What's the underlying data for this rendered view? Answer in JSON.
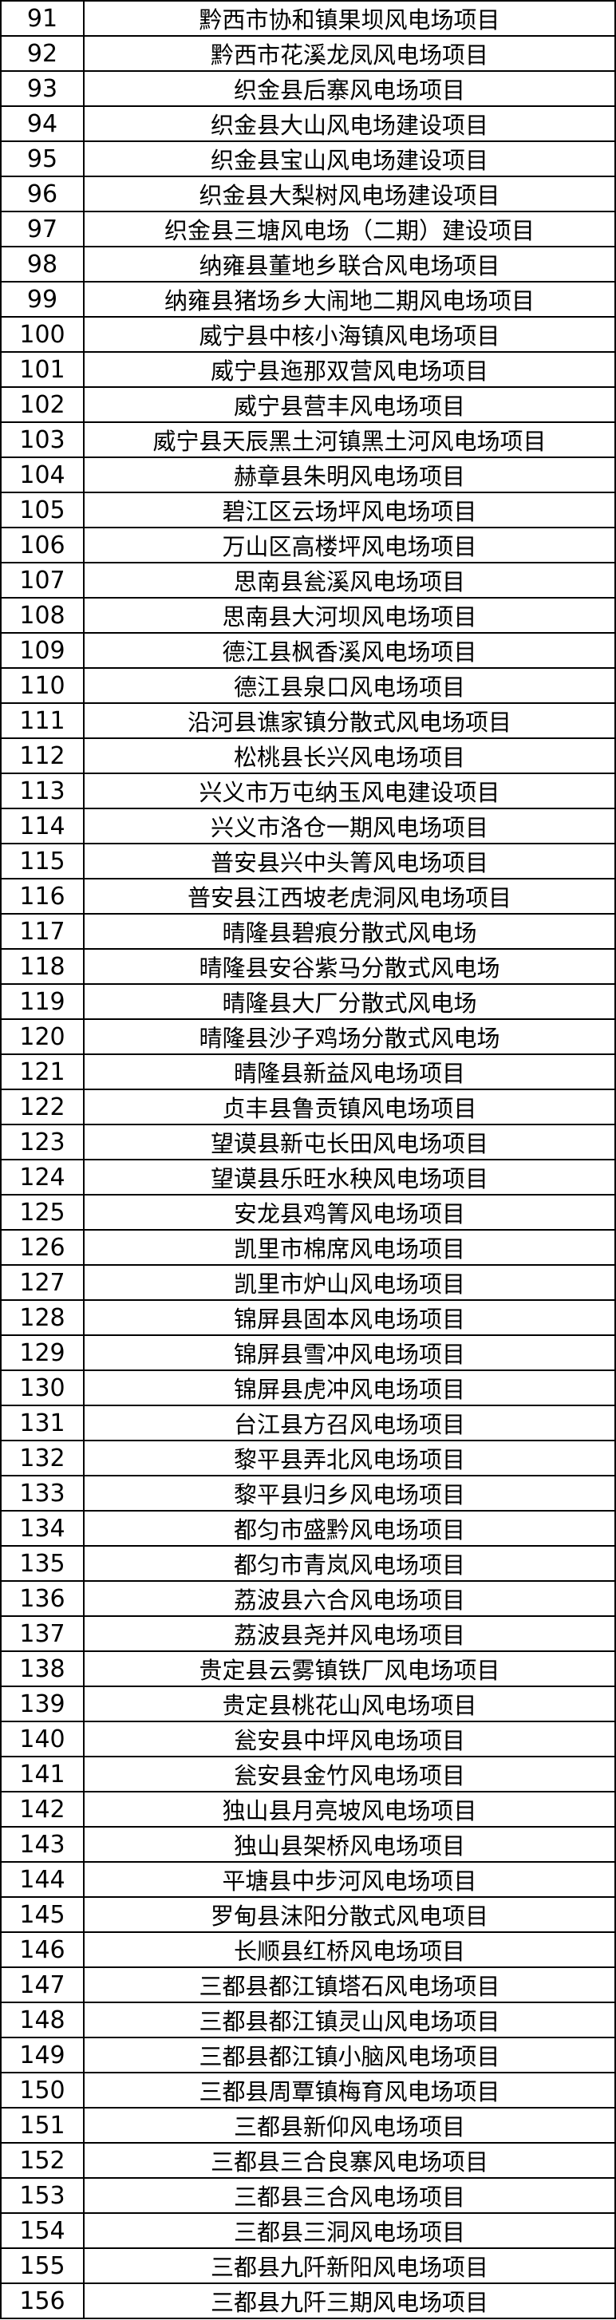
{
  "table": {
    "rows": [
      {
        "no": "91",
        "name": "黔西市协和镇果坝风电场项目"
      },
      {
        "no": "92",
        "name": "黔西市花溪龙凤风电场项目"
      },
      {
        "no": "93",
        "name": "织金县后寨风电场项目"
      },
      {
        "no": "94",
        "name": "织金县大山风电场建设项目"
      },
      {
        "no": "95",
        "name": "织金县宝山风电场建设项目"
      },
      {
        "no": "96",
        "name": "织金县大梨树风电场建设项目"
      },
      {
        "no": "97",
        "name": "织金县三塘风电场（二期）建设项目"
      },
      {
        "no": "98",
        "name": "纳雍县董地乡联合风电场项目"
      },
      {
        "no": "99",
        "name": "纳雍县猪场乡大闹地二期风电场项目"
      },
      {
        "no": "100",
        "name": "威宁县中核小海镇风电场项目"
      },
      {
        "no": "101",
        "name": "威宁县迤那双营风电场项目"
      },
      {
        "no": "102",
        "name": "威宁县营丰风电场项目"
      },
      {
        "no": "103",
        "name": "威宁县天辰黑土河镇黑土河风电场项目"
      },
      {
        "no": "104",
        "name": "赫章县朱明风电场项目"
      },
      {
        "no": "105",
        "name": "碧江区云场坪风电场项目"
      },
      {
        "no": "106",
        "name": "万山区高楼坪风电场项目"
      },
      {
        "no": "107",
        "name": "思南县瓮溪风电场项目"
      },
      {
        "no": "108",
        "name": "思南县大河坝风电场项目"
      },
      {
        "no": "109",
        "name": "德江县枫香溪风电场项目"
      },
      {
        "no": "110",
        "name": "德江县泉口风电场项目"
      },
      {
        "no": "111",
        "name": "沿河县谯家镇分散式风电场项目"
      },
      {
        "no": "112",
        "name": "松桃县长兴风电场项目"
      },
      {
        "no": "113",
        "name": "兴义市万屯纳玉风电建设项目"
      },
      {
        "no": "114",
        "name": "兴义市洛仓一期风电场项目"
      },
      {
        "no": "115",
        "name": "普安县兴中头箐风电场项目"
      },
      {
        "no": "116",
        "name": "普安县江西坡老虎洞风电场项目"
      },
      {
        "no": "117",
        "name": "晴隆县碧痕分散式风电场"
      },
      {
        "no": "118",
        "name": "晴隆县安谷紫马分散式风电场"
      },
      {
        "no": "119",
        "name": "晴隆县大厂分散式风电场"
      },
      {
        "no": "120",
        "name": "晴隆县沙子鸡场分散式风电场"
      },
      {
        "no": "121",
        "name": "晴隆县新益风电场项目"
      },
      {
        "no": "122",
        "name": "贞丰县鲁贡镇风电场项目"
      },
      {
        "no": "123",
        "name": "望谟县新屯长田风电场项目"
      },
      {
        "no": "124",
        "name": "望谟县乐旺水秧风电场项目"
      },
      {
        "no": "125",
        "name": "安龙县鸡箐风电场项目"
      },
      {
        "no": "126",
        "name": "凯里市棉席风电场项目"
      },
      {
        "no": "127",
        "name": "凯里市炉山风电场项目"
      },
      {
        "no": "128",
        "name": "锦屏县固本风电场项目"
      },
      {
        "no": "129",
        "name": "锦屏县雪冲风电场项目"
      },
      {
        "no": "130",
        "name": "锦屏县虎冲风电场项目"
      },
      {
        "no": "131",
        "name": "台江县方召风电场项目"
      },
      {
        "no": "132",
        "name": "黎平县弄北风电场项目"
      },
      {
        "no": "133",
        "name": "黎平县归乡风电场项目"
      },
      {
        "no": "134",
        "name": "都匀市盛黔风电场项目"
      },
      {
        "no": "135",
        "name": "都匀市青岚风电场项目"
      },
      {
        "no": "136",
        "name": "荔波县六合风电场项目"
      },
      {
        "no": "137",
        "name": "荔波县尧并风电场项目"
      },
      {
        "no": "138",
        "name": "贵定县云雾镇铁厂风电场项目"
      },
      {
        "no": "139",
        "name": "贵定县桃花山风电场项目"
      },
      {
        "no": "140",
        "name": "瓮安县中坪风电场项目"
      },
      {
        "no": "141",
        "name": "瓮安县金竹风电场项目"
      },
      {
        "no": "142",
        "name": "独山县月亮坡风电场项目"
      },
      {
        "no": "143",
        "name": "独山县架桥风电场项目"
      },
      {
        "no": "144",
        "name": "平塘县中步河风电场项目"
      },
      {
        "no": "145",
        "name": "罗甸县沫阳分散式风电项目"
      },
      {
        "no": "146",
        "name": "长顺县红桥风电场项目"
      },
      {
        "no": "147",
        "name": "三都县都江镇塔石风电场项目"
      },
      {
        "no": "148",
        "name": "三都县都江镇灵山风电场项目"
      },
      {
        "no": "149",
        "name": "三都县都江镇小脑风电场项目"
      },
      {
        "no": "150",
        "name": "三都县周覃镇梅育风电场项目"
      },
      {
        "no": "151",
        "name": "三都县新仰风电场项目"
      },
      {
        "no": "152",
        "name": "三都县三合良寨风电场项目"
      },
      {
        "no": "153",
        "name": "三都县三合风电场项目"
      },
      {
        "no": "154",
        "name": "三都县三洞风电场项目"
      },
      {
        "no": "155",
        "name": "三都县九阡新阳风电场项目"
      },
      {
        "no": "156",
        "name": "三都县九阡三期风电场项目"
      }
    ]
  }
}
